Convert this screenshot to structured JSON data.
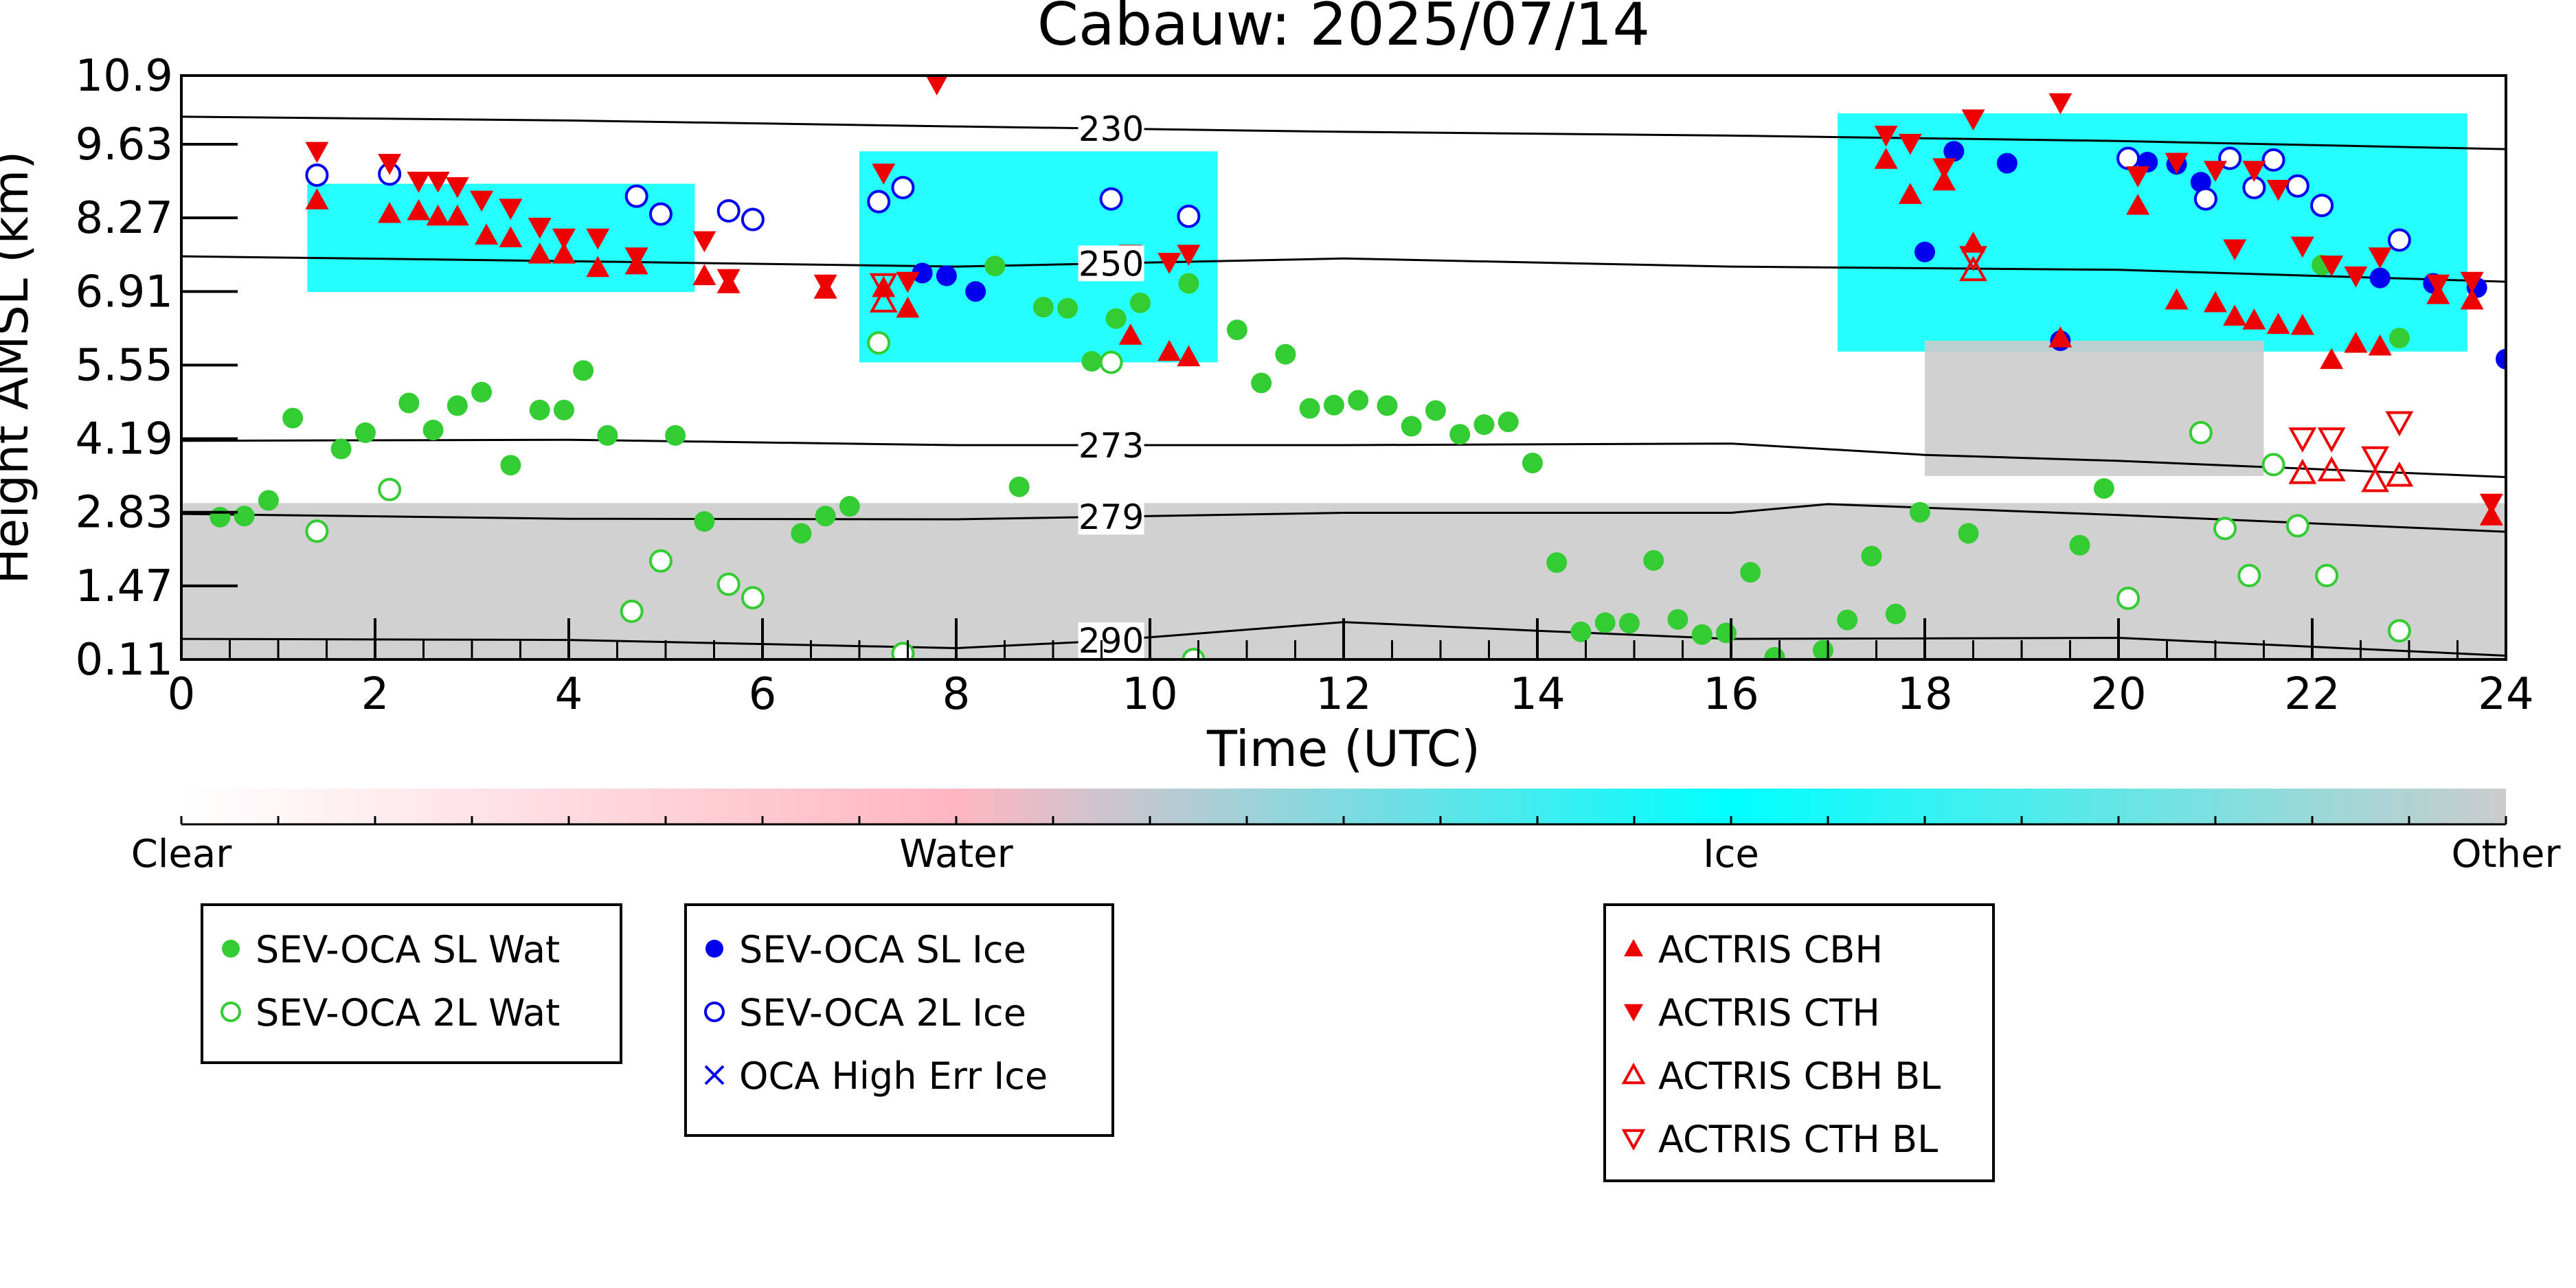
{
  "chart_data": {
    "type": "scatter",
    "title": "Cabauw: 2025/07/14",
    "xlabel": "Time (UTC)",
    "ylabel": "Height AMSL (km)",
    "xlim": [
      0,
      24
    ],
    "ylim": [
      0.11,
      10.9
    ],
    "x_ticks": [
      0,
      2,
      4,
      6,
      8,
      10,
      12,
      14,
      16,
      18,
      20,
      22,
      24
    ],
    "y_ticks": [
      0.11,
      1.47,
      2.83,
      4.19,
      5.55,
      6.91,
      8.27,
      9.63,
      10.9
    ],
    "y_tick_labels": [
      "0.11",
      "1.47",
      "2.83",
      "4.19",
      "5.55",
      "6.91",
      "8.27",
      "9.63",
      "10.9"
    ],
    "grid": false,
    "background_classification": {
      "colorbar_labels": [
        "Clear",
        "Water",
        "Ice",
        "Other"
      ],
      "colors": {
        "clear": "#ffffff",
        "water": "#ffb6c1",
        "ice": "#00ffff",
        "other": "#cccccc"
      },
      "description_regions": [
        {
          "class": "Other",
          "x_range": [
            0,
            24
          ],
          "y_range": [
            0.11,
            3.0
          ]
        },
        {
          "class": "Ice",
          "x_range": [
            1.3,
            5.3
          ],
          "y_range": [
            6.9,
            8.9
          ]
        },
        {
          "class": "Ice",
          "x_range": [
            7.0,
            10.7
          ],
          "y_range": [
            5.6,
            9.5
          ]
        },
        {
          "class": "Ice",
          "x_range": [
            17.1,
            23.6
          ],
          "y_range": [
            5.8,
            10.2
          ]
        },
        {
          "class": "Other",
          "x_range": [
            18.0,
            21.5
          ],
          "y_range": [
            3.5,
            6.0
          ]
        }
      ]
    },
    "isotherms": [
      {
        "label": "230",
        "x": [
          0,
          4,
          8,
          12,
          16,
          20,
          24
        ],
        "y": [
          10.14,
          10.07,
          9.96,
          9.86,
          9.79,
          9.69,
          9.54
        ]
      },
      {
        "label": "250",
        "x": [
          0,
          4,
          8,
          12,
          16,
          20,
          24
        ],
        "y": [
          7.56,
          7.47,
          7.37,
          7.52,
          7.37,
          7.31,
          7.09
        ]
      },
      {
        "label": "273",
        "x": [
          0,
          4,
          8,
          12,
          16,
          18,
          20,
          24
        ],
        "y": [
          4.15,
          4.17,
          4.07,
          4.07,
          4.1,
          3.89,
          3.78,
          3.48
        ]
      },
      {
        "label": "279",
        "x": [
          0,
          4,
          8,
          12,
          16,
          17,
          20,
          24
        ],
        "y": [
          2.8,
          2.71,
          2.7,
          2.82,
          2.82,
          2.98,
          2.78,
          2.47
        ]
      },
      {
        "label": "290",
        "x": [
          0,
          4,
          8,
          9.5,
          12,
          14,
          16,
          20,
          24
        ],
        "y": [
          0.49,
          0.47,
          0.32,
          0.45,
          0.8,
          0.64,
          0.49,
          0.51,
          0.18
        ]
      }
    ],
    "series": [
      {
        "name": "SEV-OCA SL Wat",
        "marker": "filled-circle",
        "color": "#33cc33",
        "points": [
          [
            0.4,
            2.74
          ],
          [
            0.65,
            2.76
          ],
          [
            0.9,
            3.05
          ],
          [
            1.15,
            4.57
          ],
          [
            1.65,
            4.0
          ],
          [
            1.9,
            4.3
          ],
          [
            2.35,
            4.85
          ],
          [
            2.6,
            4.35
          ],
          [
            2.85,
            4.8
          ],
          [
            3.1,
            5.05
          ],
          [
            3.4,
            3.7
          ],
          [
            3.7,
            4.72
          ],
          [
            3.95,
            4.72
          ],
          [
            4.15,
            5.45
          ],
          [
            4.4,
            4.25
          ],
          [
            5.1,
            4.25
          ],
          [
            5.4,
            2.66
          ],
          [
            6.4,
            2.44
          ],
          [
            6.65,
            2.76
          ],
          [
            6.9,
            2.94
          ],
          [
            8.4,
            7.38
          ],
          [
            8.65,
            3.3
          ],
          [
            8.9,
            6.62
          ],
          [
            9.15,
            6.6
          ],
          [
            9.4,
            5.62
          ],
          [
            9.65,
            6.41
          ],
          [
            9.9,
            6.7
          ],
          [
            10.4,
            7.06
          ],
          [
            10.9,
            6.2
          ],
          [
            11.15,
            5.22
          ],
          [
            11.4,
            5.75
          ],
          [
            11.65,
            4.75
          ],
          [
            11.9,
            4.81
          ],
          [
            12.15,
            4.9
          ],
          [
            12.45,
            4.8
          ],
          [
            12.7,
            4.42
          ],
          [
            12.95,
            4.71
          ],
          [
            13.2,
            4.27
          ],
          [
            13.45,
            4.45
          ],
          [
            13.7,
            4.5
          ],
          [
            13.95,
            3.74
          ],
          [
            14.2,
            1.9
          ],
          [
            14.45,
            0.62
          ],
          [
            14.7,
            0.79
          ],
          [
            14.95,
            0.78
          ],
          [
            15.2,
            1.94
          ],
          [
            15.45,
            0.85
          ],
          [
            15.7,
            0.57
          ],
          [
            15.95,
            0.6
          ],
          [
            16.2,
            1.72
          ],
          [
            16.45,
            0.15
          ],
          [
            16.95,
            0.28
          ],
          [
            17.2,
            0.84
          ],
          [
            17.45,
            2.02
          ],
          [
            17.7,
            0.95
          ],
          [
            17.95,
            2.83
          ],
          [
            18.45,
            2.44
          ],
          [
            19.6,
            2.22
          ],
          [
            19.85,
            3.27
          ],
          [
            22.1,
            7.4
          ],
          [
            22.9,
            6.05
          ]
        ]
      },
      {
        "name": "SEV-OCA 2L Wat",
        "marker": "open-circle",
        "color": "#33cc33",
        "points": [
          [
            1.4,
            2.48
          ],
          [
            2.15,
            3.25
          ],
          [
            4.65,
            1.0
          ],
          [
            4.95,
            1.93
          ],
          [
            5.65,
            1.5
          ],
          [
            5.9,
            1.25
          ],
          [
            7.2,
            5.96
          ],
          [
            7.45,
            0.22
          ],
          [
            9.6,
            5.6
          ],
          [
            10.45,
            0.11
          ],
          [
            20.1,
            1.24
          ],
          [
            20.85,
            4.3
          ],
          [
            21.1,
            2.53
          ],
          [
            21.35,
            1.66
          ],
          [
            21.6,
            3.71
          ],
          [
            21.85,
            2.58
          ],
          [
            22.15,
            1.66
          ],
          [
            22.9,
            0.64
          ]
        ]
      },
      {
        "name": "SEV-OCA SL Ice",
        "marker": "filled-circle",
        "color": "#0000ee",
        "points": [
          [
            7.65,
            7.25
          ],
          [
            7.9,
            7.2
          ],
          [
            8.2,
            6.91
          ],
          [
            18.0,
            7.64
          ],
          [
            18.3,
            9.5
          ],
          [
            18.85,
            9.28
          ],
          [
            19.4,
            6.0
          ],
          [
            20.3,
            9.3
          ],
          [
            20.6,
            9.26
          ],
          [
            20.85,
            8.93
          ],
          [
            22.7,
            7.16
          ],
          [
            23.25,
            7.06
          ],
          [
            23.7,
            6.98
          ],
          [
            24.0,
            5.66
          ]
        ]
      },
      {
        "name": "SEV-OCA 2L Ice",
        "marker": "open-circle",
        "color": "#0000ee",
        "points": [
          [
            1.4,
            9.06
          ],
          [
            2.15,
            9.08
          ],
          [
            4.7,
            8.67
          ],
          [
            4.95,
            8.34
          ],
          [
            5.65,
            8.4
          ],
          [
            5.9,
            8.24
          ],
          [
            7.2,
            8.57
          ],
          [
            7.45,
            8.83
          ],
          [
            9.6,
            8.62
          ],
          [
            10.4,
            8.3
          ],
          [
            20.1,
            9.37
          ],
          [
            20.9,
            8.62
          ],
          [
            21.15,
            9.37
          ],
          [
            21.4,
            8.83
          ],
          [
            21.6,
            9.34
          ],
          [
            21.85,
            8.86
          ],
          [
            22.1,
            8.5
          ],
          [
            22.9,
            7.86
          ]
        ]
      },
      {
        "name": "OCA High Err Ice",
        "marker": "x",
        "color": "#0000ee",
        "points": []
      },
      {
        "name": "ACTRIS CBH",
        "marker": "triangle-up",
        "color": "#ee0000",
        "points": [
          [
            1.4,
            8.6
          ],
          [
            2.15,
            8.35
          ],
          [
            2.45,
            8.4
          ],
          [
            2.65,
            8.3
          ],
          [
            2.85,
            8.3
          ],
          [
            3.15,
            7.95
          ],
          [
            3.4,
            7.9
          ],
          [
            3.7,
            7.6
          ],
          [
            3.95,
            7.6
          ],
          [
            4.3,
            7.35
          ],
          [
            4.7,
            7.4
          ],
          [
            5.4,
            7.2
          ],
          [
            5.65,
            7.05
          ],
          [
            6.65,
            6.95
          ],
          [
            7.25,
            6.98
          ],
          [
            7.5,
            6.6
          ],
          [
            9.8,
            6.1
          ],
          [
            10.2,
            5.8
          ],
          [
            10.4,
            5.7
          ],
          [
            17.6,
            9.35
          ],
          [
            17.85,
            8.7
          ],
          [
            18.2,
            8.95
          ],
          [
            18.5,
            7.8
          ],
          [
            19.4,
            6.05
          ],
          [
            20.2,
            8.5
          ],
          [
            20.6,
            6.75
          ],
          [
            21.0,
            6.7
          ],
          [
            21.2,
            6.45
          ],
          [
            21.4,
            6.38
          ],
          [
            21.65,
            6.3
          ],
          [
            21.9,
            6.28
          ],
          [
            22.2,
            5.65
          ],
          [
            22.45,
            5.95
          ],
          [
            22.7,
            5.9
          ],
          [
            23.3,
            6.85
          ],
          [
            23.65,
            6.75
          ],
          [
            23.85,
            2.76
          ]
        ]
      },
      {
        "name": "ACTRIS CTH",
        "marker": "triangle-down",
        "color": "#ee0000",
        "points": [
          [
            1.4,
            9.5
          ],
          [
            2.15,
            9.28
          ],
          [
            2.45,
            8.95
          ],
          [
            2.65,
            8.95
          ],
          [
            2.85,
            8.85
          ],
          [
            3.1,
            8.6
          ],
          [
            3.4,
            8.45
          ],
          [
            3.7,
            8.1
          ],
          [
            3.95,
            7.9
          ],
          [
            4.3,
            7.9
          ],
          [
            4.7,
            7.55
          ],
          [
            5.4,
            7.85
          ],
          [
            5.65,
            7.15
          ],
          [
            6.65,
            7.05
          ],
          [
            7.25,
            9.1
          ],
          [
            7.5,
            7.1
          ],
          [
            7.8,
            10.75
          ],
          [
            9.8,
            7.6
          ],
          [
            10.2,
            7.45
          ],
          [
            10.4,
            7.6
          ],
          [
            17.6,
            9.8
          ],
          [
            17.85,
            9.65
          ],
          [
            18.2,
            9.2
          ],
          [
            18.5,
            10.1
          ],
          [
            19.4,
            10.4
          ],
          [
            20.2,
            9.05
          ],
          [
            20.6,
            9.3
          ],
          [
            21.0,
            9.15
          ],
          [
            21.2,
            7.7
          ],
          [
            21.4,
            9.15
          ],
          [
            21.65,
            8.8
          ],
          [
            21.9,
            7.75
          ],
          [
            22.2,
            7.4
          ],
          [
            22.45,
            7.2
          ],
          [
            22.7,
            7.55
          ],
          [
            23.3,
            7.05
          ],
          [
            23.65,
            7.1
          ],
          [
            23.85,
            3.0
          ]
        ]
      },
      {
        "name": "ACTRIS CBH BL",
        "marker": "open-triangle-up",
        "color": "#ee0000",
        "points": [
          [
            7.25,
            6.72
          ],
          [
            18.5,
            7.3
          ],
          [
            21.9,
            3.55
          ],
          [
            22.2,
            3.6
          ],
          [
            22.65,
            3.4
          ],
          [
            22.9,
            3.5
          ]
        ]
      },
      {
        "name": "ACTRIS CTH BL",
        "marker": "open-triangle-down",
        "color": "#ee0000",
        "points": [
          [
            7.25,
            7.05
          ],
          [
            18.5,
            7.55
          ],
          [
            21.9,
            4.2
          ],
          [
            22.2,
            4.2
          ],
          [
            22.65,
            3.85
          ],
          [
            22.9,
            4.5
          ]
        ]
      }
    ],
    "legends": [
      {
        "entries": [
          "SEV-OCA SL Wat",
          "SEV-OCA 2L Wat"
        ]
      },
      {
        "entries": [
          "SEV-OCA SL Ice",
          "SEV-OCA 2L Ice",
          "OCA High Err Ice"
        ]
      },
      {
        "entries": [
          "ACTRIS CBH",
          "ACTRIS CTH",
          "ACTRIS CBH BL",
          "ACTRIS CTH BL"
        ]
      }
    ]
  }
}
